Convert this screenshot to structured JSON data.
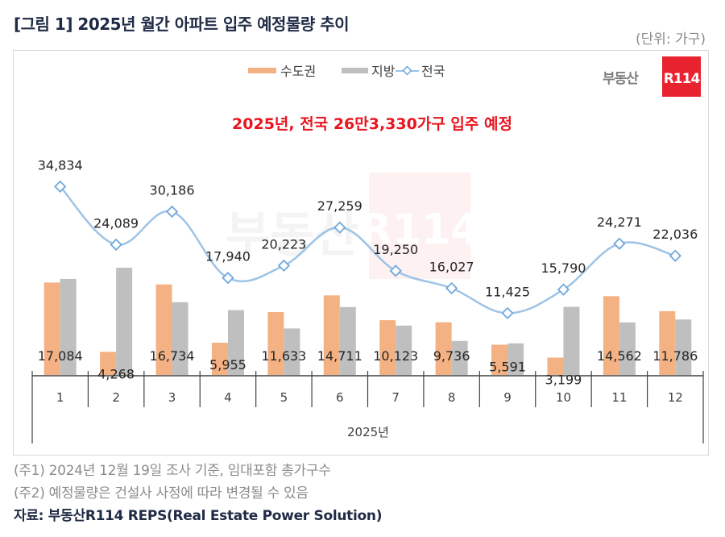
{
  "header": {
    "title": "[그림 1] 2025년 월간 아파트 입주 예정물량 추이",
    "unit": "(단위: 가구)"
  },
  "logo": {
    "text": "부동산",
    "badge": "R114"
  },
  "colors": {
    "capital": "#F4B183",
    "regional": "#BFBFBF",
    "national_line": "#9DC3E6",
    "national_marker": "#6FA8DC",
    "highlight": "#E8141E",
    "logo_red": "#E8232F"
  },
  "chart_data": {
    "type": "bar",
    "title": "2025년, 전국 26만3,330가구 입주 예정",
    "xlabel": "2025년",
    "ylabel": "",
    "ylim": [
      0,
      36000
    ],
    "grid": false,
    "legend_position": "top",
    "categories": [
      "1",
      "2",
      "3",
      "4",
      "5",
      "6",
      "7",
      "8",
      "9",
      "10",
      "11",
      "12"
    ],
    "series": [
      {
        "name": "수도권",
        "type": "bar",
        "values": [
          17084,
          4268,
          16734,
          5955,
          11633,
          14711,
          10123,
          9736,
          5591,
          3199,
          14562,
          11786
        ],
        "labels": [
          "17,084",
          "4,268",
          "16,734",
          "5,955",
          "11,633",
          "14,711",
          "10,123",
          "9,736",
          "5,591",
          "3,199",
          "14,562",
          "11,786"
        ]
      },
      {
        "name": "지방",
        "type": "bar",
        "values": [
          17750,
          19821,
          13452,
          11985,
          8590,
          12548,
          9127,
          6291,
          5834,
          12591,
          9709,
          10250
        ]
      },
      {
        "name": "전국",
        "type": "line",
        "values": [
          34834,
          24089,
          30186,
          17940,
          20223,
          27259,
          19250,
          16027,
          11425,
          15790,
          24271,
          22036
        ],
        "labels": [
          "34,834",
          "24,089",
          "30,186",
          "17,940",
          "20,223",
          "27,259",
          "19,250",
          "16,027",
          "11,425",
          "15,790",
          "24,271",
          "22,036"
        ]
      }
    ]
  },
  "footer": {
    "note1": "(주1) 2024년 12월 19일 조사 기준, 임대포함 총가구수",
    "note2": "(주2) 예정물량은 건설사 사정에 따라 변경될 수 있음",
    "source": "자료: 부동산R114 REPS(Real Estate Power Solution)"
  }
}
